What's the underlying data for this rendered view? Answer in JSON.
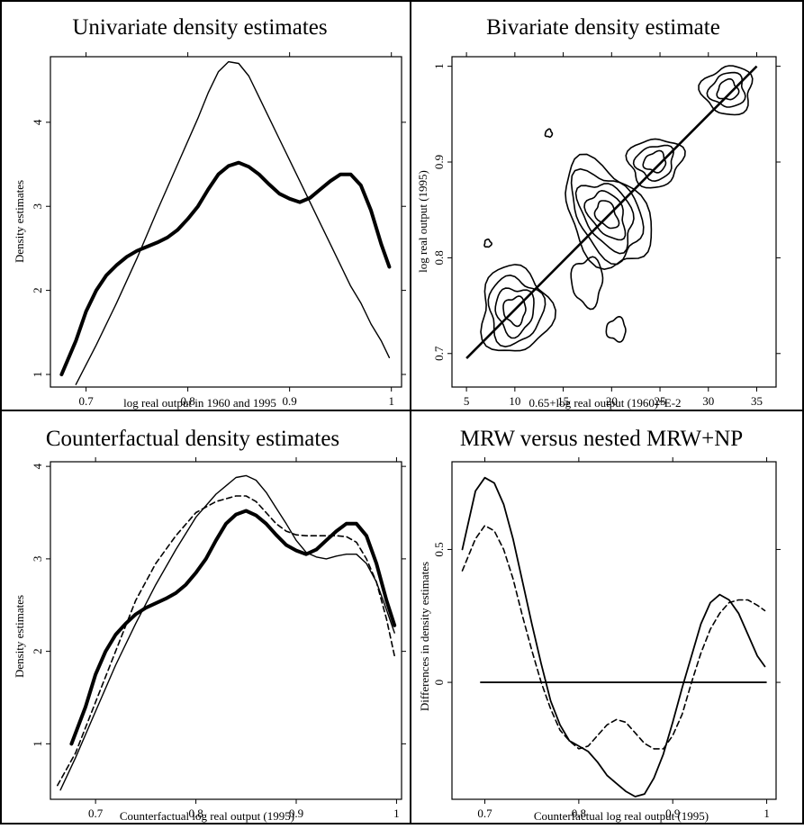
{
  "chart_data": [
    {
      "type": "line",
      "title": "Univariate density estimates",
      "xlabel": "log real output in 1960 and 1995",
      "ylabel": "Density estimates",
      "xlim": [
        0.665,
        1.01
      ],
      "ylim": [
        0.85,
        4.78
      ],
      "xticks": [
        0.7,
        0.8,
        0.9,
        1
      ],
      "xtick_labels": [
        "0.7",
        "0.8",
        "0.9",
        "1"
      ],
      "yticks": [
        1,
        2,
        3,
        4
      ],
      "ytick_labels": [
        "1",
        "2",
        "3",
        "4"
      ],
      "grid": false,
      "series": [
        {
          "style": "thick",
          "x": [
            0.676,
            0.69,
            0.7,
            0.71,
            0.72,
            0.73,
            0.74,
            0.75,
            0.76,
            0.77,
            0.78,
            0.79,
            0.8,
            0.81,
            0.82,
            0.83,
            0.84,
            0.85,
            0.86,
            0.87,
            0.88,
            0.89,
            0.9,
            0.91,
            0.92,
            0.93,
            0.94,
            0.95,
            0.96,
            0.97,
            0.98,
            0.99,
            0.998
          ],
          "y": [
            1.0,
            1.4,
            1.75,
            2.0,
            2.18,
            2.3,
            2.4,
            2.47,
            2.52,
            2.57,
            2.63,
            2.72,
            2.85,
            3.0,
            3.2,
            3.38,
            3.48,
            3.52,
            3.47,
            3.38,
            3.26,
            3.15,
            3.09,
            3.05,
            3.1,
            3.2,
            3.3,
            3.38,
            3.38,
            3.25,
            2.95,
            2.55,
            2.28
          ]
        },
        {
          "style": "thin",
          "x": [
            0.69,
            0.71,
            0.73,
            0.75,
            0.77,
            0.79,
            0.81,
            0.82,
            0.83,
            0.84,
            0.85,
            0.86,
            0.87,
            0.88,
            0.89,
            0.9,
            0.91,
            0.92,
            0.93,
            0.94,
            0.95,
            0.96,
            0.97,
            0.98,
            0.99,
            0.998
          ],
          "y": [
            0.88,
            1.35,
            1.85,
            2.38,
            2.95,
            3.5,
            4.05,
            4.35,
            4.6,
            4.72,
            4.7,
            4.55,
            4.3,
            4.05,
            3.8,
            3.55,
            3.3,
            3.05,
            2.8,
            2.55,
            2.3,
            2.05,
            1.85,
            1.6,
            1.4,
            1.2
          ]
        }
      ]
    },
    {
      "type": "contour",
      "title": "Bivariate density estimate",
      "xlabel": "0.65+log real output (1960)*E-2",
      "ylabel": "log real output (1995)",
      "xlim": [
        3.5,
        37
      ],
      "ylim": [
        0.665,
        1.01
      ],
      "xticks": [
        5,
        10,
        15,
        20,
        25,
        30,
        35
      ],
      "xtick_labels": [
        "5",
        "10",
        "15",
        "20",
        "25",
        "30",
        "35"
      ],
      "yticks": [
        0.7,
        0.8,
        0.9,
        1
      ],
      "ytick_labels": [
        "0.7",
        "0.8",
        "0.9",
        "1"
      ],
      "grid": false,
      "diagonal": {
        "x": [
          5,
          35
        ],
        "y": [
          0.695,
          1.0
        ]
      },
      "peaks": [
        {
          "x": 19.5,
          "y": 0.845,
          "rx": 3.8,
          "ry": 0.06,
          "rot": -30,
          "levels": 5
        },
        {
          "x": 10.0,
          "y": 0.745,
          "rx": 3.6,
          "ry": 0.045,
          "rot": 0,
          "levels": 4
        },
        {
          "x": 24.5,
          "y": 0.9,
          "rx": 2.8,
          "ry": 0.025,
          "rot": -20,
          "levels": 3
        },
        {
          "x": 32.0,
          "y": 0.975,
          "rx": 2.6,
          "ry": 0.025,
          "rot": -25,
          "levels": 3
        },
        {
          "x": 17.5,
          "y": 0.775,
          "rx": 1.6,
          "ry": 0.025,
          "rot": 0,
          "levels": 1
        },
        {
          "x": 20.5,
          "y": 0.725,
          "rx": 1.0,
          "ry": 0.012,
          "rot": 0,
          "levels": 1
        },
        {
          "x": 13.5,
          "y": 0.93,
          "rx": 0.35,
          "ry": 0.004,
          "rot": 0,
          "levels": 1
        },
        {
          "x": 7.2,
          "y": 0.815,
          "rx": 0.35,
          "ry": 0.004,
          "rot": 0,
          "levels": 1
        }
      ]
    },
    {
      "type": "line",
      "title": "Counterfactual density estimates",
      "xlabel": "Counterfactual log real output (1995)",
      "ylabel": "Density estimates",
      "xlim": [
        0.655,
        1.005
      ],
      "ylim": [
        0.4,
        4.05
      ],
      "xticks": [
        0.7,
        0.8,
        0.9,
        1
      ],
      "xtick_labels": [
        "0.7",
        "0.8",
        "0.9",
        "1"
      ],
      "yticks": [
        1,
        2,
        3,
        4
      ],
      "ytick_labels": [
        "1",
        "2",
        "3",
        "4"
      ],
      "grid": false,
      "series": [
        {
          "style": "thick",
          "x": [
            0.676,
            0.69,
            0.7,
            0.71,
            0.72,
            0.73,
            0.74,
            0.75,
            0.76,
            0.77,
            0.78,
            0.79,
            0.8,
            0.81,
            0.82,
            0.83,
            0.84,
            0.85,
            0.86,
            0.87,
            0.88,
            0.89,
            0.9,
            0.91,
            0.92,
            0.93,
            0.94,
            0.95,
            0.96,
            0.97,
            0.98,
            0.99,
            0.998
          ],
          "y": [
            1.0,
            1.4,
            1.75,
            2.0,
            2.18,
            2.3,
            2.4,
            2.47,
            2.52,
            2.57,
            2.63,
            2.72,
            2.85,
            3.0,
            3.2,
            3.38,
            3.48,
            3.52,
            3.47,
            3.38,
            3.26,
            3.15,
            3.09,
            3.05,
            3.1,
            3.2,
            3.3,
            3.38,
            3.38,
            3.25,
            2.95,
            2.55,
            2.28
          ]
        },
        {
          "style": "thin",
          "x": [
            0.665,
            0.68,
            0.7,
            0.72,
            0.74,
            0.76,
            0.78,
            0.8,
            0.82,
            0.84,
            0.85,
            0.86,
            0.87,
            0.88,
            0.89,
            0.9,
            0.91,
            0.92,
            0.93,
            0.94,
            0.95,
            0.96,
            0.97,
            0.98,
            0.99,
            0.998
          ],
          "y": [
            0.5,
            0.85,
            1.35,
            1.85,
            2.3,
            2.72,
            3.1,
            3.45,
            3.7,
            3.88,
            3.9,
            3.85,
            3.72,
            3.55,
            3.38,
            3.2,
            3.07,
            3.02,
            3.0,
            3.03,
            3.05,
            3.05,
            2.95,
            2.75,
            2.45,
            2.2
          ]
        },
        {
          "style": "dashed",
          "x": [
            0.662,
            0.68,
            0.7,
            0.72,
            0.74,
            0.76,
            0.78,
            0.8,
            0.82,
            0.84,
            0.85,
            0.86,
            0.87,
            0.88,
            0.89,
            0.9,
            0.91,
            0.92,
            0.93,
            0.94,
            0.95,
            0.96,
            0.97,
            0.98,
            0.99,
            0.998
          ],
          "y": [
            0.55,
            0.9,
            1.45,
            2.0,
            2.55,
            2.95,
            3.25,
            3.5,
            3.62,
            3.68,
            3.68,
            3.62,
            3.5,
            3.38,
            3.3,
            3.26,
            3.25,
            3.25,
            3.25,
            3.25,
            3.24,
            3.18,
            3.0,
            2.75,
            2.35,
            1.95
          ]
        }
      ]
    },
    {
      "type": "line",
      "title": "MRW versus nested MRW+NP",
      "xlabel": "Counterfactual log real output (1995)",
      "ylabel": "Differences in density estimates",
      "xlim": [
        0.665,
        1.01
      ],
      "ylim": [
        -0.44,
        0.83
      ],
      "xticks": [
        0.7,
        0.8,
        0.9,
        1
      ],
      "xtick_labels": [
        "0.7",
        "0.8",
        "0.9",
        "1"
      ],
      "yticks": [
        0,
        0.5
      ],
      "ytick_labels": [
        "0",
        "0.5"
      ],
      "grid": false,
      "hline": {
        "y": 0,
        "x": [
          0.695,
          1.0
        ]
      },
      "series": [
        {
          "style": "solid",
          "x": [
            0.676,
            0.69,
            0.7,
            0.71,
            0.72,
            0.73,
            0.74,
            0.75,
            0.76,
            0.77,
            0.78,
            0.79,
            0.8,
            0.81,
            0.82,
            0.83,
            0.84,
            0.85,
            0.86,
            0.87,
            0.88,
            0.89,
            0.9,
            0.91,
            0.92,
            0.93,
            0.94,
            0.95,
            0.96,
            0.97,
            0.98,
            0.99,
            0.998
          ],
          "y": [
            0.5,
            0.72,
            0.77,
            0.75,
            0.67,
            0.54,
            0.38,
            0.22,
            0.07,
            -0.07,
            -0.16,
            -0.22,
            -0.24,
            -0.26,
            -0.3,
            -0.35,
            -0.38,
            -0.41,
            -0.43,
            -0.42,
            -0.36,
            -0.27,
            -0.15,
            -0.02,
            0.1,
            0.22,
            0.3,
            0.33,
            0.31,
            0.26,
            0.18,
            0.1,
            0.06
          ]
        },
        {
          "style": "dashed",
          "x": [
            0.676,
            0.69,
            0.7,
            0.71,
            0.72,
            0.73,
            0.74,
            0.75,
            0.76,
            0.77,
            0.78,
            0.79,
            0.8,
            0.81,
            0.82,
            0.83,
            0.84,
            0.85,
            0.86,
            0.87,
            0.88,
            0.89,
            0.9,
            0.91,
            0.92,
            0.93,
            0.94,
            0.95,
            0.96,
            0.97,
            0.98,
            0.99,
            0.998
          ],
          "y": [
            0.42,
            0.54,
            0.59,
            0.57,
            0.5,
            0.39,
            0.25,
            0.12,
            0.0,
            -0.1,
            -0.18,
            -0.22,
            -0.25,
            -0.24,
            -0.2,
            -0.16,
            -0.14,
            -0.15,
            -0.19,
            -0.23,
            -0.25,
            -0.25,
            -0.2,
            -0.12,
            0.0,
            0.11,
            0.2,
            0.26,
            0.3,
            0.31,
            0.31,
            0.29,
            0.27
          ]
        }
      ]
    }
  ]
}
